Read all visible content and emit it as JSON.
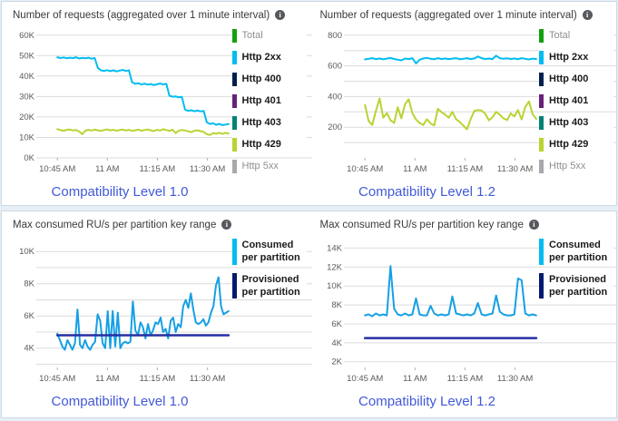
{
  "colors": {
    "caption_blue": "#4159d8",
    "http2xx_cyan": "#00bcf2",
    "http400_navy": "#002050",
    "http401_purple": "#68217a",
    "http403_teal": "#008272",
    "http429_yellowgreen": "#b8d432",
    "http5xx_gray": "#a7a9ac",
    "total_green": "#13a10e",
    "consumed_cyan": "#16a0e4",
    "provisioned_navy": "#252fa5",
    "gridline": "#dcdcdc"
  },
  "chart_data": [
    {
      "type": "line",
      "title": "Number of requests (aggregated over 1 minute interval)",
      "caption": "Compatibility Level 1.0",
      "ylim": [
        0,
        63000
      ],
      "x_range": [
        0.1,
        0.99
      ],
      "yticks": [
        {
          "v": 0,
          "label": "0K"
        },
        {
          "v": 10000,
          "label": "10K"
        },
        {
          "v": 20000,
          "label": "20K"
        },
        {
          "v": 30000,
          "label": "30K"
        },
        {
          "v": 40000,
          "label": "40K"
        },
        {
          "v": 50000,
          "label": "50K"
        },
        {
          "v": 60000,
          "label": "60K"
        }
      ],
      "xticks": [
        {
          "f": 0.1,
          "label": "10:45 AM"
        },
        {
          "f": 0.36,
          "label": "11 AM"
        },
        {
          "f": 0.62,
          "label": "11:15 AM"
        },
        {
          "f": 0.88,
          "label": "11:30 AM"
        }
      ],
      "series": [
        {
          "name": "Http 2xx",
          "color": "#00bcf2",
          "width": 2,
          "scale": 1000,
          "values": [
            49.2,
            48.8,
            49.1,
            48.7,
            49.0,
            48.8,
            49.2,
            48.6,
            48.9,
            48.7,
            49.0,
            48.5,
            48.8,
            44.0,
            42.8,
            42.5,
            42.9,
            42.4,
            42.8,
            42.3,
            42.7,
            43.0,
            42.5,
            42.8,
            37.0,
            36.2,
            36.5,
            35.9,
            36.3,
            35.8,
            36.1,
            35.6,
            36.0,
            36.4,
            35.9,
            36.2,
            30.4,
            29.9,
            30.1,
            29.6,
            29.8,
            23.6,
            23.0,
            23.3,
            22.8,
            23.1,
            22.7,
            23.0,
            17.4,
            16.6,
            16.9,
            16.2,
            16.6,
            16.0,
            16.3,
            16.6
          ]
        },
        {
          "name": "Http 429",
          "color": "#b8d432",
          "width": 2,
          "scale": 1000,
          "values": [
            14.0,
            13.6,
            13.2,
            13.7,
            13.9,
            13.4,
            13.6,
            12.9,
            11.6,
            13.3,
            13.7,
            13.4,
            13.8,
            13.5,
            13.2,
            13.6,
            13.9,
            13.5,
            13.7,
            13.3,
            13.6,
            13.8,
            13.4,
            13.7,
            13.2,
            13.5,
            13.8,
            13.3,
            13.6,
            13.9,
            13.5,
            13.1,
            13.7,
            13.4,
            14.0,
            13.6,
            13.2,
            13.8,
            12.1,
            13.3,
            13.6,
            13.4,
            13.0,
            12.6,
            13.2,
            13.5,
            13.1,
            12.7,
            11.6,
            11.2,
            12.1,
            11.8,
            12.3,
            11.7,
            12.2,
            12.0
          ]
        }
      ],
      "legend": [
        {
          "label": "Total",
          "color": "#13a10e",
          "muted": true
        },
        {
          "label": "Http 2xx",
          "color": "#00bcf2",
          "muted": false
        },
        {
          "label": "Http 400",
          "color": "#002050",
          "muted": false
        },
        {
          "label": "Http 401",
          "color": "#68217a",
          "muted": false
        },
        {
          "label": "Http 403",
          "color": "#008272",
          "muted": false
        },
        {
          "label": "Http 429",
          "color": "#b8d432",
          "muted": false
        },
        {
          "label": "Http 5xx",
          "color": "#a7a9ac",
          "muted": true
        }
      ]
    },
    {
      "type": "line",
      "title": "Number of requests (aggregated over 1 minute interval)",
      "caption": "Compatibility Level 1.2",
      "ylim": [
        0,
        840
      ],
      "x_range": [
        0.1,
        0.99
      ],
      "yticks": [
        {
          "v": 100,
          "label": ""
        },
        {
          "v": 200,
          "label": "200"
        },
        {
          "v": 300,
          "label": ""
        },
        {
          "v": 400,
          "label": "400"
        },
        {
          "v": 500,
          "label": ""
        },
        {
          "v": 600,
          "label": "600"
        },
        {
          "v": 700,
          "label": ""
        },
        {
          "v": 800,
          "label": "800"
        }
      ],
      "xticks": [
        {
          "f": 0.1,
          "label": "10:45 AM"
        },
        {
          "f": 0.36,
          "label": "11 AM"
        },
        {
          "f": 0.62,
          "label": "11:15 AM"
        },
        {
          "f": 0.88,
          "label": "11:30 AM"
        }
      ],
      "series": [
        {
          "name": "Http 2xx",
          "color": "#00bcf2",
          "width": 2,
          "scale": 1,
          "values": [
            642,
            646,
            650,
            644,
            648,
            643,
            647,
            651,
            645,
            640,
            636,
            648,
            644,
            650,
            616,
            640,
            648,
            652,
            646,
            643,
            650,
            645,
            648,
            644,
            647,
            650,
            643,
            646,
            650,
            644,
            648,
            661,
            650,
            645,
            648,
            644,
            666,
            650,
            646,
            649,
            645,
            648,
            644,
            650,
            646,
            642,
            647,
            644
          ]
        },
        {
          "name": "Http 429",
          "color": "#b8d432",
          "width": 2,
          "scale": 1,
          "values": [
            345,
            240,
            214,
            305,
            388,
            262,
            292,
            246,
            228,
            330,
            258,
            350,
            382,
            292,
            250,
            228,
            214,
            252,
            224,
            212,
            320,
            298,
            282,
            262,
            300,
            252,
            234,
            210,
            186,
            252,
            305,
            312,
            308,
            288,
            245,
            265,
            300,
            282,
            258,
            246,
            290,
            270,
            312,
            250,
            332,
            368,
            286,
            254
          ]
        }
      ],
      "legend": [
        {
          "label": "Total",
          "color": "#13a10e",
          "muted": true
        },
        {
          "label": "Http 2xx",
          "color": "#00bcf2",
          "muted": false
        },
        {
          "label": "Http 400",
          "color": "#002050",
          "muted": false
        },
        {
          "label": "Http 401",
          "color": "#68217a",
          "muted": false
        },
        {
          "label": "Http 403",
          "color": "#008272",
          "muted": false
        },
        {
          "label": "Http 429",
          "color": "#b8d432",
          "muted": false
        },
        {
          "label": "Http 5xx",
          "color": "#a7a9ac",
          "muted": true
        }
      ]
    },
    {
      "type": "line",
      "title": "Max consumed RU/s per partition key range",
      "caption": "Compatibility Level 1.0",
      "ylim": [
        2800,
        10800
      ],
      "x_range": [
        0.1,
        0.99
      ],
      "yticks": [
        {
          "v": 3000,
          "label": ""
        },
        {
          "v": 4000,
          "label": "4K"
        },
        {
          "v": 5000,
          "label": ""
        },
        {
          "v": 6000,
          "label": "6K"
        },
        {
          "v": 7000,
          "label": ""
        },
        {
          "v": 8000,
          "label": "8K"
        },
        {
          "v": 9000,
          "label": ""
        },
        {
          "v": 10000,
          "label": "10K"
        }
      ],
      "xticks": [
        {
          "f": 0.1,
          "label": "10:45 AM"
        },
        {
          "f": 0.36,
          "label": "11 AM"
        },
        {
          "f": 0.62,
          "label": "11:15 AM"
        },
        {
          "f": 0.88,
          "label": "11:30 AM"
        }
      ],
      "series": [
        {
          "name": "Consumed per partition",
          "color": "#16a0e4",
          "width": 2,
          "scale": 1000,
          "values": [
            4.9,
            4.5,
            4.1,
            3.9,
            4.5,
            4.2,
            3.9,
            4.3,
            6.4,
            4.2,
            4.0,
            4.5,
            4.1,
            3.9,
            4.2,
            4.4,
            6.1,
            5.7,
            4.3,
            4.0,
            6.3,
            4.0,
            6.3,
            4.1,
            6.2,
            4.0,
            4.3,
            4.4,
            4.3,
            4.4,
            6.9,
            5.1,
            4.8,
            5.6,
            5.3,
            4.6,
            5.5,
            4.8,
            5.1,
            5.6,
            5.5,
            5.9,
            5.0,
            5.2,
            4.6,
            5.7,
            5.9,
            5.0,
            5.5,
            5.3,
            6.6,
            7.0,
            6.5,
            7.4,
            6.4,
            5.6,
            5.5,
            5.6,
            5.8,
            5.4,
            5.6,
            6.2,
            6.6,
            7.9,
            8.4,
            6.6,
            6.1,
            6.2,
            6.3
          ]
        },
        {
          "name": "Provisioned per partition",
          "color": "#252fa5",
          "width": 2.5,
          "scale": 1000,
          "values": [
            4.8,
            4.8
          ]
        }
      ],
      "legend": [
        {
          "label": "Consumed per partition",
          "color": "#00bcf2",
          "muted": false
        },
        {
          "label": "Provisioned per partition",
          "color": "#001a70",
          "muted": false
        }
      ]
    },
    {
      "type": "line",
      "title": "Max consumed RU/s per partition key range",
      "caption": "Compatibility Level 1.2",
      "ylim": [
        1400,
        15000
      ],
      "x_range": [
        0.1,
        0.99
      ],
      "yticks": [
        {
          "v": 2000,
          "label": "2K"
        },
        {
          "v": 4000,
          "label": "4K"
        },
        {
          "v": 6000,
          "label": "6K"
        },
        {
          "v": 8000,
          "label": "8K"
        },
        {
          "v": 10000,
          "label": "10K"
        },
        {
          "v": 12000,
          "label": "12K"
        },
        {
          "v": 14000,
          "label": "14K"
        }
      ],
      "xticks": [
        {
          "f": 0.1,
          "label": "10:45 AM"
        },
        {
          "f": 0.36,
          "label": "11 AM"
        },
        {
          "f": 0.62,
          "label": "11:15 AM"
        },
        {
          "f": 0.88,
          "label": "11:30 AM"
        }
      ],
      "series": [
        {
          "name": "Consumed per partition",
          "color": "#16a0e4",
          "width": 2,
          "scale": 1000,
          "values": [
            6.9,
            7.0,
            6.8,
            7.1,
            6.9,
            7.0,
            6.9,
            12.1,
            7.6,
            7.0,
            6.9,
            7.1,
            6.9,
            7.0,
            8.7,
            7.0,
            6.9,
            6.9,
            7.9,
            7.1,
            6.9,
            7.0,
            6.9,
            7.0,
            8.9,
            7.1,
            7.0,
            6.9,
            7.0,
            6.9,
            7.1,
            8.2,
            7.0,
            6.9,
            7.0,
            7.1,
            9.0,
            7.3,
            7.0,
            6.9,
            6.9,
            7.0,
            10.8,
            10.6,
            7.1,
            6.9,
            7.0,
            6.9
          ]
        },
        {
          "name": "Provisioned per partition",
          "color": "#252fa5",
          "width": 2.5,
          "scale": 1000,
          "values": [
            4.5,
            4.5
          ]
        }
      ],
      "legend": [
        {
          "label": "Consumed per partition",
          "color": "#00bcf2",
          "muted": false
        },
        {
          "label": "Provisioned per partition",
          "color": "#001a70",
          "muted": false
        }
      ]
    }
  ]
}
